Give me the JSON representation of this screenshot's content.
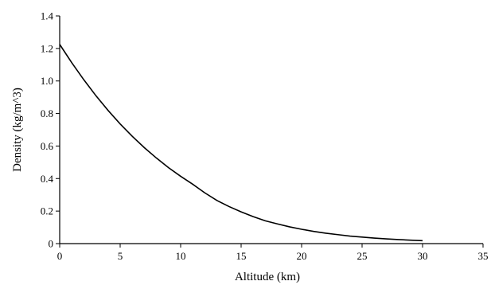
{
  "chart_data": {
    "type": "line",
    "title": "",
    "xlabel": "Altitude (km)",
    "ylabel": "Density (kg/m^3)",
    "xlim": [
      0,
      35
    ],
    "ylim": [
      0,
      1.4
    ],
    "x_ticks": [
      0,
      5,
      10,
      15,
      20,
      25,
      30,
      35
    ],
    "y_ticks": [
      0,
      0.2,
      0.4,
      0.6,
      0.8,
      1.0,
      1.2,
      1.4
    ],
    "x_tick_labels": [
      "0",
      "5",
      "10",
      "15",
      "20",
      "25",
      "30",
      "35"
    ],
    "y_tick_labels": [
      "0",
      "0.2",
      "0.4",
      "0.6",
      "0.8",
      "1.0",
      "1.2",
      "1.4"
    ],
    "grid": false,
    "line_color": "#000000",
    "series": [
      {
        "x": [
          0,
          1,
          2,
          3,
          4,
          5,
          6,
          7,
          8,
          9,
          10,
          11,
          12,
          13,
          14,
          15,
          16,
          17,
          18,
          19,
          20,
          21,
          22,
          23,
          24,
          25,
          26,
          27,
          28,
          29,
          30
        ],
        "values": [
          1.225,
          1.112,
          1.007,
          0.909,
          0.819,
          0.736,
          0.66,
          0.59,
          0.526,
          0.467,
          0.414,
          0.365,
          0.312,
          0.265,
          0.228,
          0.195,
          0.166,
          0.14,
          0.121,
          0.103,
          0.088,
          0.075,
          0.064,
          0.055,
          0.046,
          0.04,
          0.034,
          0.029,
          0.025,
          0.021,
          0.018
        ]
      }
    ]
  }
}
